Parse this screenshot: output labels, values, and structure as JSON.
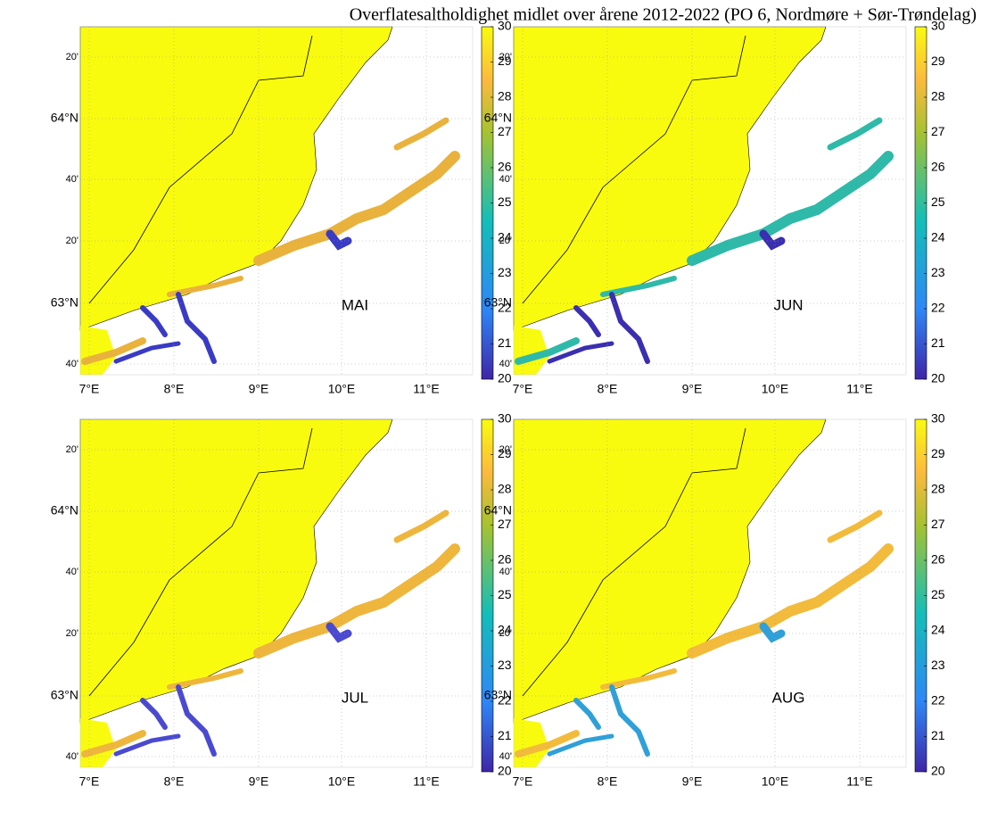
{
  "title": "Overflatesaltholdighet midlet over årene 2012-2022 (PO 6, Nordmøre + Sør-Trøndelag)",
  "colorbar": {
    "range": [
      20,
      30
    ],
    "ticks": [
      20,
      21,
      22,
      23,
      24,
      25,
      26,
      27,
      28,
      29,
      30
    ]
  },
  "lon_ticks": [
    "7°E",
    "8°E",
    "9°E",
    "10°E",
    "11°E"
  ],
  "lat_ticks": [
    "20'",
    "64°N",
    "40'",
    "20'",
    "63°N",
    "40'"
  ],
  "panels": [
    {
      "label": "MAI"
    },
    {
      "label": "JUN"
    },
    {
      "label": "JUL"
    },
    {
      "label": "AUG"
    }
  ]
}
